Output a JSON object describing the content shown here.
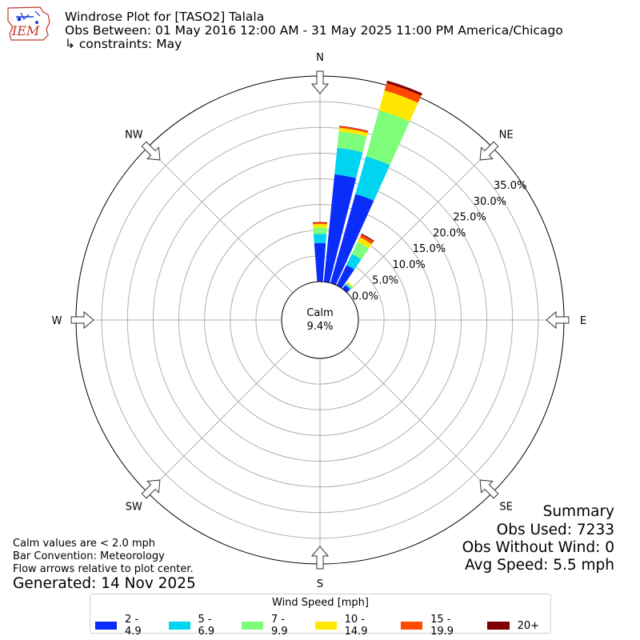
{
  "header": {
    "logo_text": "IEM",
    "title": "Windrose Plot for [TASO2] Talala",
    "subtitle": "Obs Between: 01 May 2016 12:00 AM - 31 May 2025 11:00 PM America/Chicago",
    "constraints": "↳ constraints: May"
  },
  "summary": {
    "heading": "Summary",
    "obs_used": "Obs Used: 7233",
    "obs_without_wind": "Obs Without Wind: 0",
    "avg_speed": "Avg Speed: 5.5 mph"
  },
  "notes": {
    "calm": "Calm values are < 2.0 mph",
    "bar_convention": "Bar Convention: Meteorology",
    "flow_arrows": "Flow arrows relative to plot center.",
    "generated": "Generated: 14 Nov 2025"
  },
  "legend": {
    "title": "Wind Speed [mph]",
    "items": [
      {
        "label": "2 - 4.9",
        "color": "#0b2dfa"
      },
      {
        "label": "5 - 6.9",
        "color": "#00d4f0"
      },
      {
        "label": "7 - 9.9",
        "color": "#7dfd7a"
      },
      {
        "label": "10 - 14.9",
        "color": "#ffe600"
      },
      {
        "label": "15 - 19.9",
        "color": "#ff4a00"
      },
      {
        "label": "20+",
        "color": "#800000"
      }
    ]
  },
  "chart_data": {
    "type": "windrose",
    "calm_label": "Calm",
    "calm_value": "9.4%",
    "compass": [
      "N",
      "NE",
      "E",
      "SE",
      "S",
      "SW",
      "W",
      "NW"
    ],
    "radial_ticks": [
      "0.0%",
      "5.0%",
      "10.0%",
      "15.0%",
      "20.0%",
      "25.0%",
      "30.0%",
      "35.0%"
    ],
    "radial_tick_values": [
      0,
      5,
      10,
      15,
      20,
      25,
      30,
      35
    ],
    "rmax": 35,
    "bins": [
      "2 - 4.9",
      "5 - 6.9",
      "7 - 9.9",
      "10 - 14.9",
      "15 - 19.9",
      "20+"
    ],
    "directions": [
      {
        "dir": 0,
        "values": [
          7.5,
          1.8,
          1.2,
          0.7,
          0.3,
          0.1
        ]
      },
      {
        "dir": 10,
        "values": [
          21.0,
          5.2,
          3.2,
          0.7,
          0.3,
          0.1
        ]
      },
      {
        "dir": 20,
        "values": [
          18.0,
          7.6,
          9.3,
          4.0,
          1.5,
          0.5
        ]
      },
      {
        "dir": 30,
        "values": [
          4.4,
          2.4,
          2.6,
          1.0,
          0.6,
          0.2
        ]
      },
      {
        "dir": 40,
        "values": [
          0.9,
          0.3,
          0.2,
          0.3,
          0.0,
          0.0
        ]
      }
    ]
  }
}
